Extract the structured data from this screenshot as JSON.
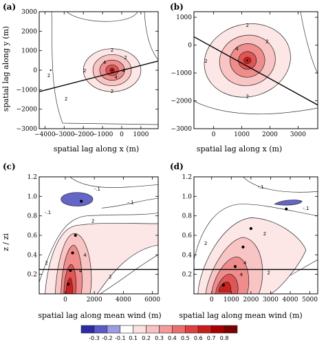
{
  "chart_data": [
    {
      "type": "contour",
      "panel": "(a)",
      "xlabel": "spatial lag along x (m)",
      "ylabel": "spatial lag along y (m)",
      "xlim": [
        -4300,
        1900
      ],
      "ylim": [
        -3000,
        3000
      ],
      "xticks": [
        -4000,
        -3000,
        -2000,
        -1000,
        0,
        1000
      ],
      "yticks": [
        -3000,
        -2000,
        -1000,
        0,
        1000,
        2000,
        3000
      ],
      "xtick_labels": [
        "−4000",
        "−3000",
        "−2000",
        "−1000",
        "0",
        "1000"
      ],
      "ytick_labels": [
        "−3000",
        "−2000",
        "−1000",
        "0",
        "1000",
        "2000",
        "3000"
      ],
      "center": [
        -500,
        0
      ],
      "contours": [
        {
          "level": 0.2,
          "rx": 1500,
          "ry": 1100
        },
        {
          "level": 0.3,
          "rx": 1000,
          "ry": 800
        },
        {
          "level": 0.4,
          "rx": 650,
          "ry": 520
        },
        {
          "level": 0.5,
          "rx": 330,
          "ry": 280
        }
      ],
      "contour_labels": [
        "2",
        "2",
        "2",
        "2",
        "4",
        "4",
        "4"
      ],
      "line": {
        "x": [
          -4300,
          1900
        ],
        "y": [
          -1100,
          470
        ]
      }
    },
    {
      "type": "contour",
      "panel": "(b)",
      "xlabel": "spatial lag along x (m)",
      "ylabel": "",
      "xlim": [
        -700,
        3700
      ],
      "ylim": [
        -3000,
        1200
      ],
      "xticks": [
        0,
        1000,
        2000,
        3000
      ],
      "yticks": [
        -3000,
        -2000,
        -1000,
        0,
        1000
      ],
      "xtick_labels": [
        "0",
        "1000",
        "2000",
        "3000"
      ],
      "ytick_labels": [
        "−3000",
        "−2000",
        "−1000",
        "0",
        "1000"
      ],
      "center": [
        1200,
        -550
      ],
      "contours": [
        {
          "level": 0.2,
          "rx": 1550,
          "ry": 1300
        },
        {
          "level": 0.3,
          "rx": 1000,
          "ry": 900
        },
        {
          "level": 0.4,
          "rx": 620,
          "ry": 600
        },
        {
          "level": 0.5,
          "rx": 320,
          "ry": 320
        }
      ],
      "contour_labels": [
        "2",
        "2",
        "2",
        "2",
        "4"
      ],
      "line": {
        "x": [
          -700,
          3700
        ],
        "y": [
          300,
          -2150
        ]
      }
    },
    {
      "type": "contour",
      "panel": "(c)",
      "xlabel": "spatial lag along mean wind (m)",
      "ylabel": "z / zi",
      "xlim": [
        -1800,
        6400
      ],
      "ylim": [
        0,
        1.2
      ],
      "xticks": [
        0,
        2000,
        4000,
        6000
      ],
      "yticks": [
        0.2,
        0.4,
        0.6,
        0.8,
        1.0,
        1.2
      ],
      "xtick_labels": [
        "0",
        "2000",
        "4000",
        "6000"
      ],
      "ytick_labels": [
        "0.2",
        "0.4",
        "0.6",
        "0.8",
        "1.0",
        "1.2"
      ],
      "contour_labels": [
        "2",
        "2",
        "2",
        "4",
        "4",
        "-.1",
        "-.1",
        "-.1"
      ],
      "points": [
        {
          "x": 1100,
          "y": 0.95
        },
        {
          "x": 700,
          "y": 0.6
        },
        {
          "x": 500,
          "y": 0.42
        },
        {
          "x": 350,
          "y": 0.24
        },
        {
          "x": 200,
          "y": 0.1
        }
      ],
      "hline": 0.25
    },
    {
      "type": "contour",
      "panel": "(d)",
      "xlabel": "spatial lag along mean wind (m)",
      "ylabel": "",
      "xlim": [
        -900,
        5400
      ],
      "ylim": [
        0,
        1.2
      ],
      "xticks": [
        0,
        1000,
        2000,
        3000,
        4000,
        5000
      ],
      "yticks": [
        0.2,
        0.4,
        0.6,
        0.8,
        1.0,
        1.2
      ],
      "xtick_labels": [
        "0",
        "1000",
        "2000",
        "3000",
        "4000",
        "5000"
      ],
      "ytick_labels": [
        "0.2",
        "0.4",
        "0.6",
        "0.8",
        "1.0",
        "1.2"
      ],
      "contour_labels": [
        "2",
        "2",
        "2",
        "4",
        "4",
        "-.1",
        "-.1"
      ],
      "points": [
        {
          "x": 3800,
          "y": 0.87
        },
        {
          "x": 2000,
          "y": 0.67
        },
        {
          "x": 1600,
          "y": 0.48
        },
        {
          "x": 1200,
          "y": 0.28
        },
        {
          "x": 600,
          "y": 0.09
        }
      ],
      "hline": 0.25
    }
  ],
  "colorbar": {
    "levels": [
      "-0.3",
      "-0.2",
      "-0.1",
      "0.1",
      "0.2",
      "0.3",
      "0.4",
      "0.5",
      "0.6",
      "0.7",
      "0.8"
    ],
    "colors": [
      "#2b2ba6",
      "#5b5bc8",
      "#9c9ce0",
      "#ffffff",
      "#fde0e0",
      "#f9c2c2",
      "#f39a9a",
      "#ea6e6e",
      "#dc4040",
      "#c91c1c",
      "#a80000",
      "#7d0000"
    ]
  },
  "colors": {
    "level_0.2": "#fde6e6",
    "level_0.3": "#f8c4c4",
    "level_0.4": "#ef8d8d",
    "level_0.5": "#e05555",
    "level_0.6": "#c92020",
    "negative": "#6565c8",
    "line": "#000000"
  }
}
